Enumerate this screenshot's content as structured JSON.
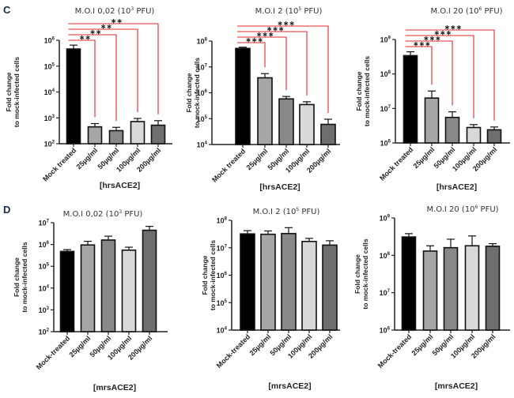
{
  "figure": {
    "panel_letters": [
      "C",
      "D"
    ],
    "ylabel_line1": "Fold change",
    "ylabel_line2": "to mock-infected cells"
  },
  "colors": {
    "bar_fills": [
      "#000000",
      "#a6a6a6",
      "#888888",
      "#d9d9d9",
      "#6e6e6e"
    ],
    "bar_stroke": "#111111",
    "significance": "#e0282e",
    "axis": "#222222"
  },
  "chart_data": [
    {
      "id": "C1",
      "panel": "C",
      "type": "bar",
      "title": "M.O.I 0,02 (10³ PFU)",
      "title_base": "M.O.I 0,02 (10",
      "title_exp": "3",
      "title_tail": " PFU)",
      "xlabel": "[hrsACE2]",
      "ylabel": "Fold change to mock-infected cells",
      "yscale": "log",
      "ylim": [
        100,
        1000000
      ],
      "yticks": [
        {
          "base": "10",
          "exp": "2"
        },
        {
          "base": "10",
          "exp": "3"
        },
        {
          "base": "10",
          "exp": "4"
        },
        {
          "base": "10",
          "exp": "5"
        },
        {
          "base": "10",
          "exp": "6"
        }
      ],
      "categories": [
        "Mock treated",
        "25µg/ml",
        "50µg/ml",
        "100µg/ml",
        "200µg/ml"
      ],
      "values": [
        460000,
        450,
        320,
        720,
        520
      ],
      "errors": [
        650000,
        600,
        430,
        950,
        780
      ],
      "significance": [
        {
          "from": 0,
          "to": 1,
          "label": "**"
        },
        {
          "from": 0,
          "to": 2,
          "label": "**"
        },
        {
          "from": 0,
          "to": 3,
          "label": "**"
        },
        {
          "from": 0,
          "to": 4,
          "label": "**"
        }
      ]
    },
    {
      "id": "C2",
      "panel": "C",
      "type": "bar",
      "title": "M.O.I 2 (10⁵ PFU)",
      "title_base": "M.O.I 2 (10",
      "title_exp": "5",
      "title_tail": " PFU)",
      "xlabel": "[hrsACE2]",
      "ylabel": "Fold change to mock-infected cells",
      "yscale": "log",
      "ylim": [
        10000,
        100000000
      ],
      "yticks": [
        {
          "base": "10",
          "exp": "4"
        },
        {
          "base": "10",
          "exp": "5"
        },
        {
          "base": "10",
          "exp": "6"
        },
        {
          "base": "10",
          "exp": "7"
        },
        {
          "base": "10",
          "exp": "8"
        }
      ],
      "categories": [
        "Mock treated",
        "25µg/ml",
        "50µg/ml",
        "100µg/ml",
        "200µg/ml"
      ],
      "values": [
        52000000,
        3800000,
        580000,
        350000,
        60000
      ],
      "errors": [
        58000000,
        5500000,
        720000,
        450000,
        95000
      ],
      "significance": [
        {
          "from": 0,
          "to": 1,
          "label": "***"
        },
        {
          "from": 0,
          "to": 2,
          "label": "***"
        },
        {
          "from": 0,
          "to": 3,
          "label": "***"
        },
        {
          "from": 0,
          "to": 4,
          "label": "***"
        }
      ]
    },
    {
      "id": "C3",
      "panel": "C",
      "type": "bar",
      "title": "M.O.I 20 (10⁶ PFU)",
      "title_base": "M.O.I 20 (10",
      "title_exp": "6",
      "title_tail": " PFU)",
      "xlabel": "[hrsACE2]",
      "ylabel": "Fold change to mock-infected cells",
      "yscale": "log",
      "ylim": [
        1000000,
        1000000000
      ],
      "yticks": [
        {
          "base": "10",
          "exp": "6"
        },
        {
          "base": "10",
          "exp": "7"
        },
        {
          "base": "10",
          "exp": "8"
        },
        {
          "base": "10",
          "exp": "9"
        }
      ],
      "categories": [
        "Mock treated",
        "25µg/ml",
        "50µg/ml",
        "100µg/ml",
        "200µg/ml"
      ],
      "values": [
        340000000,
        20000000,
        5500000,
        2800000,
        2400000
      ],
      "errors": [
        440000000,
        32000000,
        8000000,
        3400000,
        2900000
      ],
      "significance": [
        {
          "from": 0,
          "to": 1,
          "label": "***"
        },
        {
          "from": 0,
          "to": 2,
          "label": "***"
        },
        {
          "from": 0,
          "to": 3,
          "label": "***"
        },
        {
          "from": 0,
          "to": 4,
          "label": "***"
        }
      ]
    },
    {
      "id": "D1",
      "panel": "D",
      "type": "bar",
      "title": "M.O.I 0,02 (10³ PFU)",
      "title_base": "M.O.I 0,02 (10",
      "title_exp": "3",
      "title_tail": " PFU)",
      "xlabel": "[mrsACE2]",
      "ylabel": "Fold change to mock-infected cells",
      "yscale": "log",
      "ylim": [
        100,
        10000000
      ],
      "yticks": [
        {
          "base": "10",
          "exp": "2"
        },
        {
          "base": "10",
          "exp": "3"
        },
        {
          "base": "10",
          "exp": "4"
        },
        {
          "base": "10",
          "exp": "5"
        },
        {
          "base": "10",
          "exp": "6"
        },
        {
          "base": "10",
          "exp": "7"
        }
      ],
      "categories": [
        "Mock-treated",
        "25µg/ml",
        "50µg/ml",
        "100µg/ml",
        "200µg/ml"
      ],
      "values": [
        480000,
        950000,
        1600000,
        550000,
        4500000
      ],
      "errors": [
        580000,
        1400000,
        2400000,
        750000,
        6800000
      ],
      "significance": []
    },
    {
      "id": "D2",
      "panel": "D",
      "type": "bar",
      "title": "M.O.I 2 (10⁵ PFU)",
      "title_base": "M.O.I 2 (10",
      "title_exp": "5",
      "title_tail": " PFU)",
      "xlabel": "[mrsACE2]",
      "ylabel": "Fold change to mock-infected cells",
      "yscale": "log",
      "ylim": [
        10000,
        100000000
      ],
      "yticks": [
        {
          "base": "10",
          "exp": "4"
        },
        {
          "base": "10",
          "exp": "5"
        },
        {
          "base": "10",
          "exp": "6"
        },
        {
          "base": "10",
          "exp": "7"
        },
        {
          "base": "10",
          "exp": "8"
        }
      ],
      "categories": [
        "Mock-treated",
        "25µg/ml",
        "50µg/ml",
        "100µg/ml",
        "200µg/ml"
      ],
      "values": [
        32000000,
        31000000,
        33000000,
        17000000,
        12500000
      ],
      "errors": [
        42000000,
        41000000,
        54000000,
        22000000,
        18000000
      ],
      "significance": []
    },
    {
      "id": "D3",
      "panel": "D",
      "type": "bar",
      "title": "M.O.I 20 (10⁶ PFU)",
      "title_base": "M.O.I 20 (10",
      "title_exp": "6",
      "title_tail": " PFU)",
      "xlabel": "[mrsACE2]",
      "ylabel": "Fold change to mock-infected cells",
      "yscale": "log",
      "ylim": [
        1000000,
        1000000000
      ],
      "yticks": [
        {
          "base": "10",
          "exp": "6"
        },
        {
          "base": "10",
          "exp": "7"
        },
        {
          "base": "10",
          "exp": "8"
        },
        {
          "base": "10",
          "exp": "9"
        }
      ],
      "categories": [
        "Mock-treated",
        "25µg/ml",
        "50µg/ml",
        "100µg/ml",
        "200µg/ml"
      ],
      "values": [
        310000000,
        130000000,
        160000000,
        180000000,
        175000000
      ],
      "errors": [
        380000000,
        180000000,
        270000000,
        330000000,
        205000000
      ],
      "significance": []
    }
  ]
}
